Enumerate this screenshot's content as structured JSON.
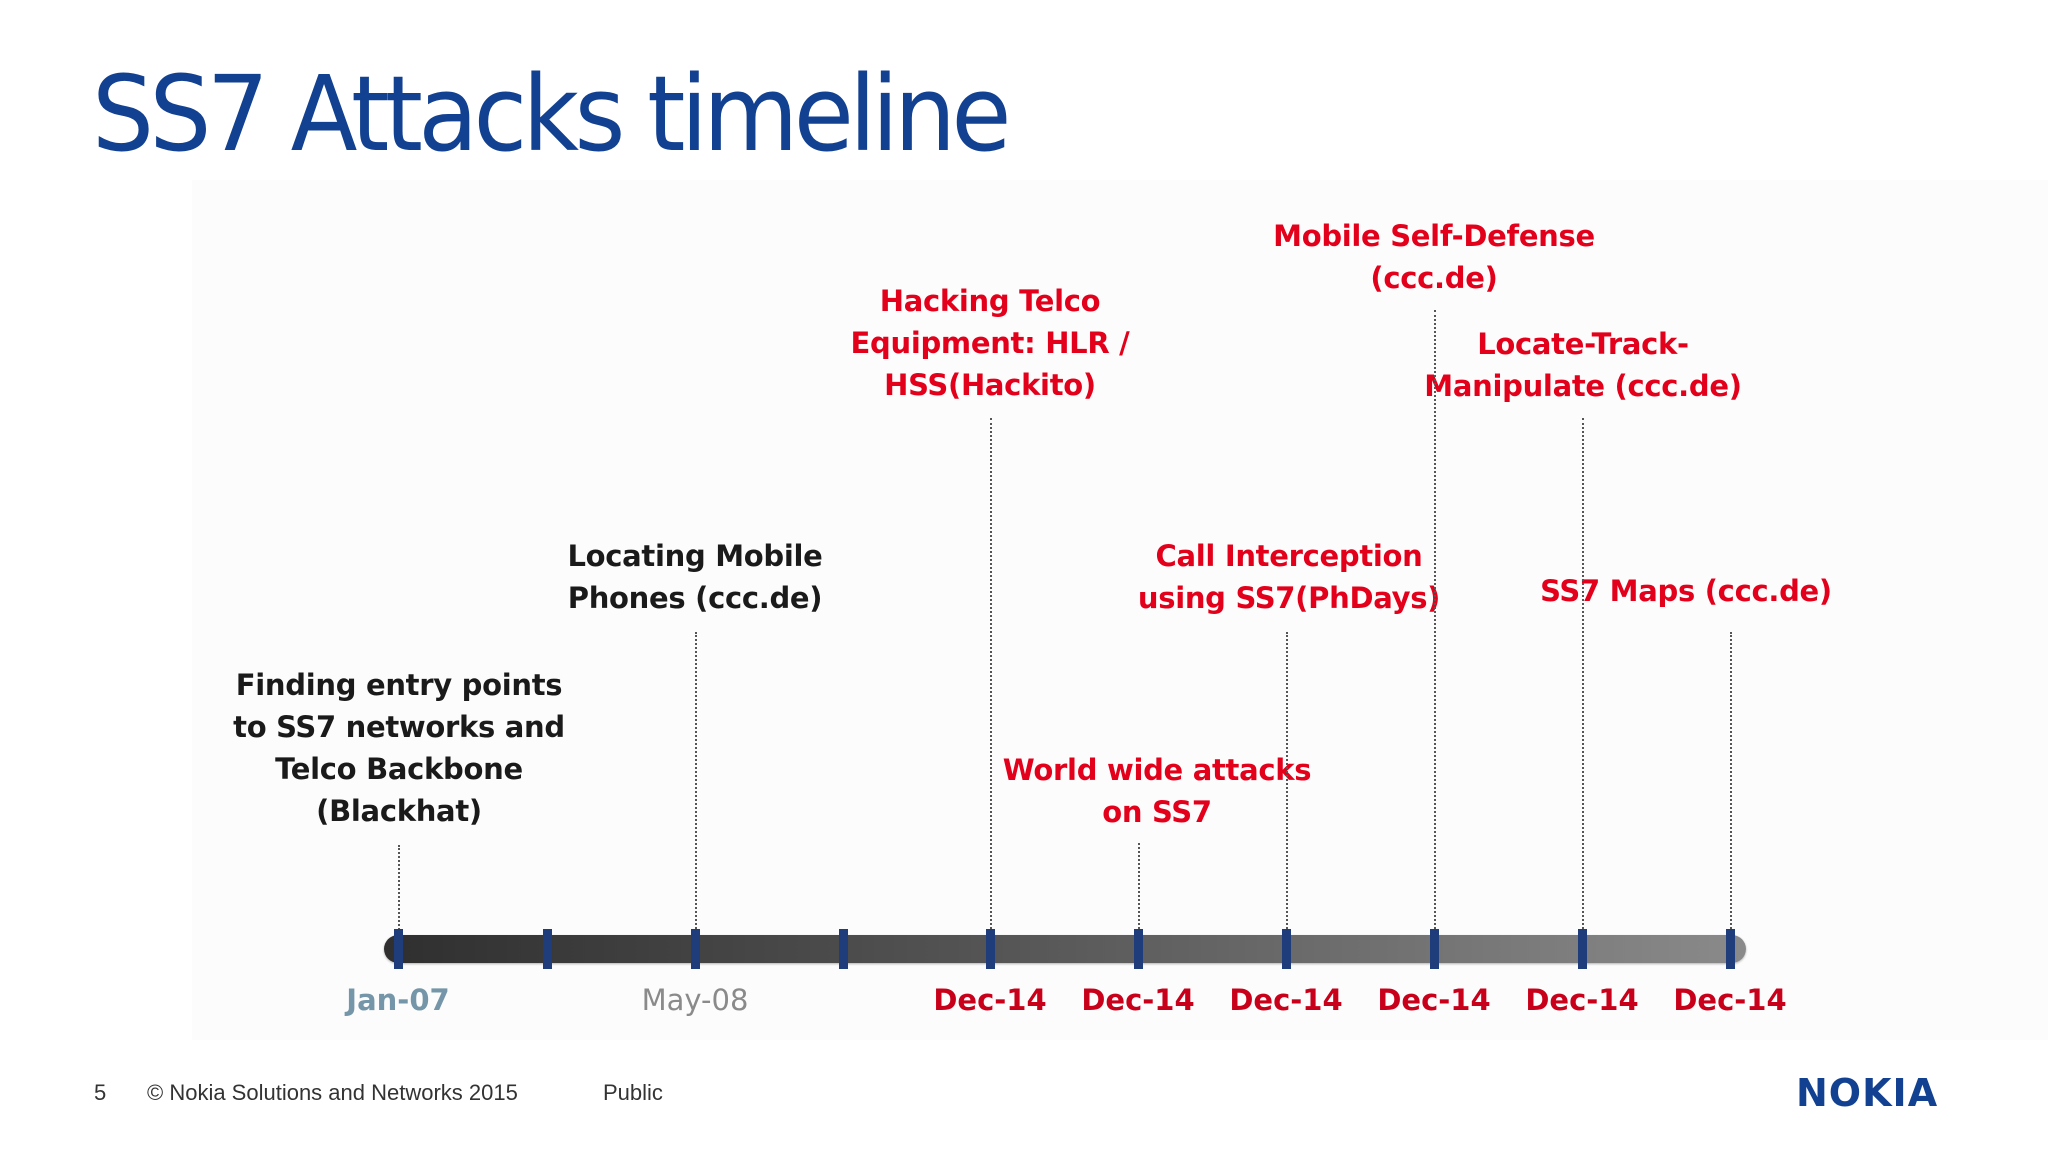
{
  "title": "SS7 Attacks timeline",
  "events": [
    {
      "lines": [
        "Finding entry points",
        "to SS7 networks and",
        "Telco Backbone",
        "(Blackhat)"
      ],
      "date": "Jan-07"
    },
    {
      "lines": [
        "Locating Mobile",
        "Phones (ccc.de)"
      ],
      "date": "May-08"
    },
    {
      "lines": [
        "Hacking Telco",
        "Equipment: HLR /",
        "HSS(Hackito)"
      ],
      "date": "Dec-14"
    },
    {
      "lines": [
        "World wide attacks",
        "on SS7"
      ],
      "date": "Dec-14"
    },
    {
      "lines": [
        "Call Interception",
        "using SS7(PhDays)"
      ],
      "date": "Dec-14"
    },
    {
      "lines": [
        "Mobile Self-Defense",
        "(ccc.de)"
      ],
      "date": "Dec-14"
    },
    {
      "lines": [
        "Locate-Track-",
        "Manipulate  (ccc.de)"
      ],
      "date": "Dec-14"
    },
    {
      "lines": [
        "SS7 Maps (ccc.de)"
      ],
      "date": "Dec-14"
    }
  ],
  "footer": {
    "page_number": "5",
    "copyright": "© Nokia Solutions and Networks 2015",
    "classification": "Public",
    "logo_text": "NOKIA"
  },
  "colors": {
    "title": "#124191",
    "highlight_text": "#e3001b",
    "normal_text": "#1a1a1a",
    "tick": "#1f3d7a"
  }
}
